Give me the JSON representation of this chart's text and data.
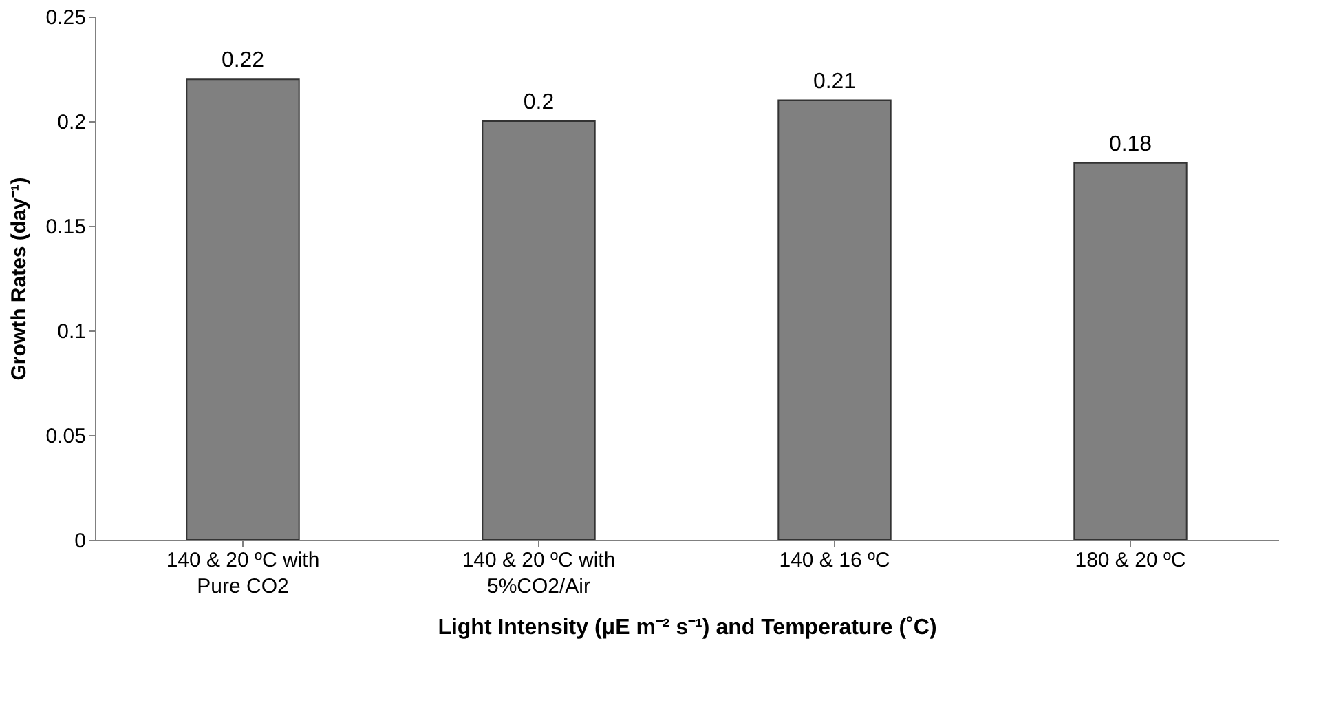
{
  "chart_data": {
    "type": "bar",
    "xlabel": "Light Intensity (μE m⁻² s⁻¹) and Temperature (˚C)",
    "ylabel": "Growth Rates (day⁻¹)",
    "categories": [
      "140 & 20 ºC with Pure CO2",
      "140 & 20 ºC with 5%CO2/Air",
      "140 & 16 ºC",
      "180 & 20 ºC"
    ],
    "values": [
      0.22,
      0.2,
      0.21,
      0.18
    ],
    "color": "#808080",
    "ylim": [
      0,
      0.25
    ],
    "yticks": [
      0,
      0.05,
      0.1,
      0.15,
      0.2,
      0.25
    ],
    "data_labels": true,
    "grid": false
  }
}
